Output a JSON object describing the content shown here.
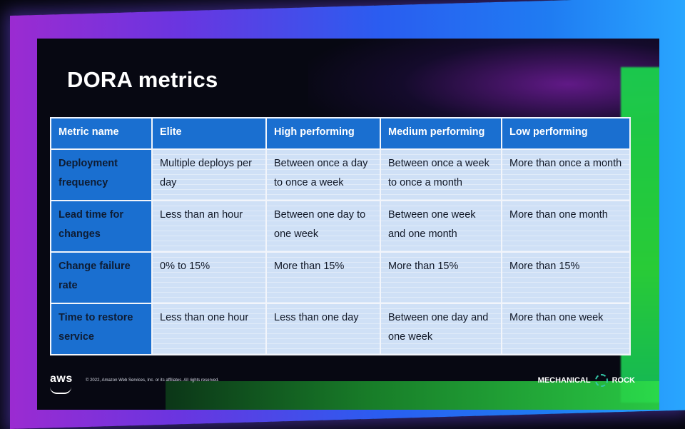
{
  "slide": {
    "title": "DORA metrics",
    "table": {
      "headers": [
        "Metric name",
        "Elite",
        "High performing",
        "Medium performing",
        "Low performing"
      ],
      "rows": [
        {
          "metric": "Deployment frequency",
          "elite": "Multiple deploys per day",
          "high": "Between once a day to once a week",
          "medium": "Between once a week to once a month",
          "low": "More than once a month"
        },
        {
          "metric": "Lead time for changes",
          "elite": "Less than an hour",
          "high": "Between one day to one week",
          "medium": "Between one week and one month",
          "low": "More than one month"
        },
        {
          "metric": "Change failure rate",
          "elite": "0% to 15%",
          "high": "More than 15%",
          "medium": "More than 15%",
          "low": "More than 15%"
        },
        {
          "metric": "Time to restore service",
          "elite": "Less than one hour",
          "high": "Less than one day",
          "medium": "Between one day and one week",
          "low": "More than one week"
        }
      ]
    },
    "footer": {
      "aws_logo_text": "aws",
      "copyright": "© 2022, Amazon Web Services, Inc. or its affiliates. All rights reserved.",
      "partner_left": "MECHANICAL",
      "partner_right": "ROCK"
    }
  },
  "colors": {
    "header_blue": "#1a6fd0",
    "cell_light_blue": "#cfe0f6",
    "frame_purple": "#9b2bd1",
    "frame_green": "#2bd63a"
  },
  "icons": {
    "aws_logo": "aws-smile-logo",
    "partner_logo": "gear-logo-icon"
  }
}
